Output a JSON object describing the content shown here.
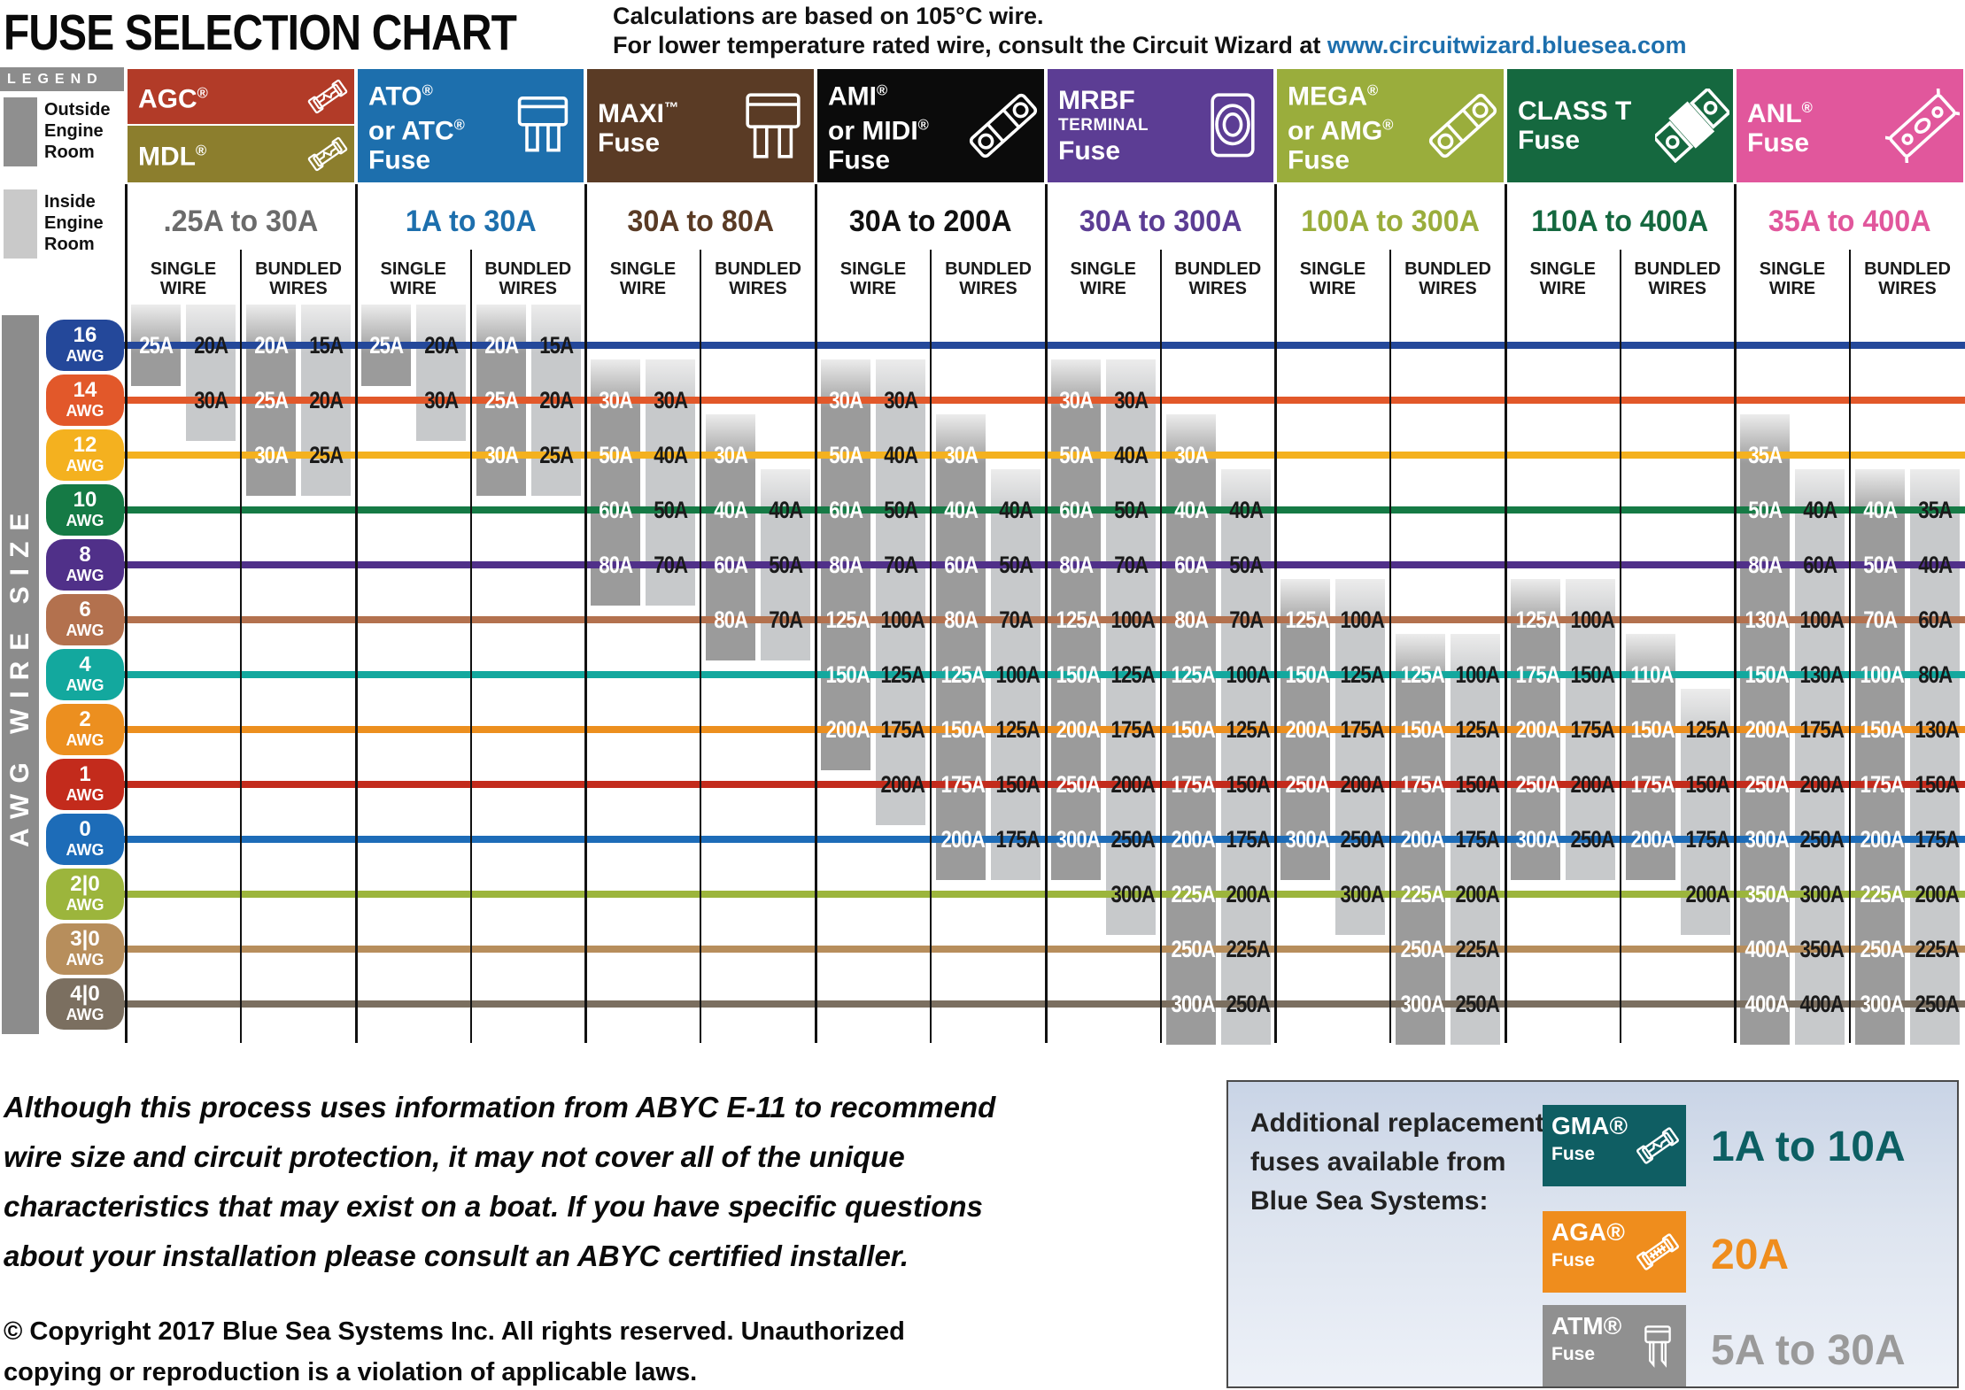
{
  "title": "FUSE SELECTION CHART",
  "note": {
    "line1": "Calculations are based on 105°C wire.",
    "line2_prefix": "For lower temperature rated wire, consult the Circuit Wizard at ",
    "link": "www.circuitwizard.bluesea.com"
  },
  "legend": {
    "title": "LEGEND",
    "outside_label": "Outside Engine Room",
    "inside_label": "Inside Engine Room",
    "outside_color": "#8f8f8f",
    "inside_color": "#c9c9c9"
  },
  "axis_label": "AWG WIRE SIZE",
  "disclaimer": [
    "Although this process uses information from ABYC E-11 to recommend",
    "wire size and circuit protection, it may not cover all of the unique",
    "characteristics that may exist on a boat. If you have specific questions",
    "about your installation please consult an ABYC certified installer."
  ],
  "copyright": [
    "© Copyright 2017 Blue Sea Systems Inc. All rights reserved. Unauthorized",
    "copying or reproduction is a violation of applicable laws."
  ],
  "replacement": {
    "intro_lines": [
      "Additional replacement",
      "fuses available from",
      "Blue Sea Systems:"
    ],
    "items": [
      {
        "id": "gma",
        "label": "GMA®",
        "sub": "Fuse",
        "range": "1A to 10A",
        "bg": "#0f5e63",
        "range_color": "#0d5f63"
      },
      {
        "id": "aga",
        "label": "AGA®",
        "sub": "Fuse",
        "range": "20A",
        "bg": "#ef8d1d",
        "range_color": "#ef8d1d"
      },
      {
        "id": "atm",
        "label": "ATM®",
        "sub": "Fuse",
        "range": "5A to 30A",
        "bg": "#909090",
        "range_color": "#9a9a9a"
      }
    ]
  },
  "chart_data": {
    "type": "table",
    "title": "FUSE SELECTION CHART",
    "row_axis_label": "AWG WIRE SIZE",
    "value_unit": "A",
    "value_slots": [
      "outside_engine_room",
      "inside_engine_room"
    ],
    "subcolumns": [
      "SINGLE WIRE",
      "BUNDLED WIRES"
    ],
    "bar_colors": {
      "outside": "#9b9b9b",
      "inside": "#c7c9cb"
    },
    "rows": [
      {
        "awg": "16",
        "color": "#24489a"
      },
      {
        "awg": "14",
        "color": "#e2582a"
      },
      {
        "awg": "12",
        "color": "#f4b11f"
      },
      {
        "awg": "10",
        "color": "#157a45"
      },
      {
        "awg": "8",
        "color": "#503089"
      },
      {
        "awg": "6",
        "color": "#b3714e"
      },
      {
        "awg": "4",
        "color": "#13a89e"
      },
      {
        "awg": "2",
        "color": "#ec8f1f"
      },
      {
        "awg": "1",
        "color": "#c32b1c"
      },
      {
        "awg": "0",
        "color": "#1d6cb8"
      },
      {
        "awg": "2|0",
        "color": "#9cb53c"
      },
      {
        "awg": "3|0",
        "color": "#b78e5c"
      },
      {
        "awg": "4|0",
        "color": "#7b6f60"
      }
    ],
    "columns": [
      {
        "id": "agc-mdl",
        "range": ".25A to 30A",
        "range_color": "#6b6b6b",
        "header": [
          {
            "lines": [
              "AGC®"
            ],
            "bg": "#b23b28",
            "icon": "glass-fuse"
          },
          {
            "lines": [
              "MDL®"
            ],
            "bg": "#8c7e2d",
            "icon": "glass-fuse"
          }
        ],
        "cells": [
          {
            "awg": "16",
            "single": [
              25,
              20
            ],
            "bundled": [
              20,
              15
            ]
          },
          {
            "awg": "14",
            "single": [
              null,
              30
            ],
            "bundled": [
              25,
              20
            ]
          },
          {
            "awg": "12",
            "bundled": [
              30,
              25
            ]
          }
        ]
      },
      {
        "id": "ato-atc",
        "range": "1A to 30A",
        "range_color": "#1d6fad",
        "header": [
          {
            "lines": [
              "ATO®",
              "or ATC®",
              "Fuse"
            ],
            "bg": "#1d6fad",
            "icon": "blade-fuse"
          }
        ],
        "cells": [
          {
            "awg": "16",
            "single": [
              25,
              20
            ],
            "bundled": [
              20,
              15
            ]
          },
          {
            "awg": "14",
            "single": [
              null,
              30
            ],
            "bundled": [
              25,
              20
            ]
          },
          {
            "awg": "12",
            "bundled": [
              30,
              25
            ]
          }
        ]
      },
      {
        "id": "maxi",
        "range": "30A to 80A",
        "range_color": "#5a3b25",
        "header": [
          {
            "lines": [
              "MAXI™",
              "Fuse"
            ],
            "bg": "#5a3b25",
            "icon": "maxi-fuse"
          }
        ],
        "cells": [
          {
            "awg": "14",
            "single": [
              30,
              30
            ]
          },
          {
            "awg": "12",
            "single": [
              50,
              40
            ],
            "bundled": [
              30,
              null
            ]
          },
          {
            "awg": "10",
            "single": [
              60,
              50
            ],
            "bundled": [
              40,
              40
            ]
          },
          {
            "awg": "8",
            "single": [
              80,
              70
            ],
            "bundled": [
              60,
              50
            ]
          },
          {
            "awg": "6",
            "bundled": [
              80,
              70
            ]
          }
        ]
      },
      {
        "id": "ami-midi",
        "range": "30A to 200A",
        "range_color": "#111111",
        "header": [
          {
            "lines": [
              "AMI®",
              "or MIDI®",
              "Fuse"
            ],
            "bg": "#0b0b0b",
            "icon": "bolt-fuse"
          }
        ],
        "cells": [
          {
            "awg": "14",
            "single": [
              30,
              30
            ]
          },
          {
            "awg": "12",
            "single": [
              50,
              40
            ],
            "bundled": [
              30,
              null
            ]
          },
          {
            "awg": "10",
            "single": [
              60,
              50
            ],
            "bundled": [
              40,
              40
            ]
          },
          {
            "awg": "8",
            "single": [
              80,
              70
            ],
            "bundled": [
              60,
              50
            ]
          },
          {
            "awg": "6",
            "single": [
              125,
              100
            ],
            "bundled": [
              80,
              70
            ]
          },
          {
            "awg": "4",
            "single": [
              150,
              125
            ],
            "bundled": [
              125,
              100
            ]
          },
          {
            "awg": "2",
            "single": [
              200,
              175
            ],
            "bundled": [
              150,
              125
            ]
          },
          {
            "awg": "1",
            "single": [
              null,
              200
            ],
            "bundled": [
              175,
              150
            ]
          },
          {
            "awg": "0",
            "bundled": [
              200,
              175
            ]
          }
        ]
      },
      {
        "id": "mrbf",
        "range": "30A to 300A",
        "range_color": "#5c3d94",
        "header": [
          {
            "lines": [
              "MRBF",
              "TERMINAL",
              "Fuse"
            ],
            "bg": "#5c3d94",
            "icon": "terminal-fuse"
          }
        ],
        "cells": [
          {
            "awg": "14",
            "single": [
              30,
              30
            ]
          },
          {
            "awg": "12",
            "single": [
              50,
              40
            ],
            "bundled": [
              30,
              null
            ]
          },
          {
            "awg": "10",
            "single": [
              60,
              50
            ],
            "bundled": [
              40,
              40
            ]
          },
          {
            "awg": "8",
            "single": [
              80,
              70
            ],
            "bundled": [
              60,
              50
            ]
          },
          {
            "awg": "6",
            "single": [
              125,
              100
            ],
            "bundled": [
              80,
              70
            ]
          },
          {
            "awg": "4",
            "single": [
              150,
              125
            ],
            "bundled": [
              125,
              100
            ]
          },
          {
            "awg": "2",
            "single": [
              200,
              175
            ],
            "bundled": [
              150,
              125
            ]
          },
          {
            "awg": "1",
            "single": [
              250,
              200
            ],
            "bundled": [
              175,
              150
            ]
          },
          {
            "awg": "0",
            "single": [
              300,
              250
            ],
            "bundled": [
              200,
              175
            ]
          },
          {
            "awg": "2|0",
            "single": [
              null,
              300
            ],
            "bundled": [
              225,
              200
            ]
          },
          {
            "awg": "3|0",
            "bundled": [
              250,
              225
            ]
          },
          {
            "awg": "4|0",
            "bundled": [
              300,
              250
            ]
          }
        ]
      },
      {
        "id": "mega-amg",
        "range": "100A to 300A",
        "range_color": "#9aad3c",
        "header": [
          {
            "lines": [
              "MEGA®",
              "or AMG®",
              "Fuse"
            ],
            "bg": "#9aad3c",
            "icon": "bolt-fuse"
          }
        ],
        "cells": [
          {
            "awg": "6",
            "single": [
              125,
              100
            ]
          },
          {
            "awg": "4",
            "single": [
              150,
              125
            ],
            "bundled": [
              125,
              100
            ]
          },
          {
            "awg": "2",
            "single": [
              200,
              175
            ],
            "bundled": [
              150,
              125
            ]
          },
          {
            "awg": "1",
            "single": [
              250,
              200
            ],
            "bundled": [
              175,
              150
            ]
          },
          {
            "awg": "0",
            "single": [
              300,
              250
            ],
            "bundled": [
              200,
              175
            ]
          },
          {
            "awg": "2|0",
            "single": [
              null,
              300
            ],
            "bundled": [
              225,
              200
            ]
          },
          {
            "awg": "3|0",
            "bundled": [
              250,
              225
            ]
          },
          {
            "awg": "4|0",
            "bundled": [
              300,
              250
            ]
          }
        ]
      },
      {
        "id": "class-t",
        "range": "110A to 400A",
        "range_color": "#15683f",
        "header": [
          {
            "lines": [
              "CLASS T",
              "Fuse"
            ],
            "bg": "#15683f",
            "icon": "class-t-fuse"
          }
        ],
        "cells": [
          {
            "awg": "6",
            "single": [
              125,
              100
            ]
          },
          {
            "awg": "4",
            "single": [
              175,
              150
            ],
            "bundled": [
              110,
              null
            ]
          },
          {
            "awg": "2",
            "single": [
              200,
              175
            ],
            "bundled": [
              150,
              125
            ]
          },
          {
            "awg": "1",
            "single": [
              250,
              200
            ],
            "bundled": [
              175,
              150
            ]
          },
          {
            "awg": "0",
            "single": [
              300,
              250
            ],
            "bundled": [
              200,
              175
            ]
          },
          {
            "awg": "2|0",
            "bundled": [
              null,
              200
            ]
          }
        ]
      },
      {
        "id": "anl",
        "range": "35A to 400A",
        "range_color": "#e1579c",
        "header": [
          {
            "lines": [
              "ANL®",
              "Fuse"
            ],
            "bg": "#e1579c",
            "icon": "anl-fuse"
          }
        ],
        "cells": [
          {
            "awg": "12",
            "single": [
              35,
              null
            ]
          },
          {
            "awg": "10",
            "single": [
              50,
              40
            ],
            "bundled": [
              40,
              35
            ]
          },
          {
            "awg": "8",
            "single": [
              80,
              60
            ],
            "bundled": [
              50,
              40
            ]
          },
          {
            "awg": "6",
            "single": [
              130,
              100
            ],
            "bundled": [
              70,
              60
            ]
          },
          {
            "awg": "4",
            "single": [
              150,
              130
            ],
            "bundled": [
              100,
              80
            ]
          },
          {
            "awg": "2",
            "single": [
              200,
              175
            ],
            "bundled": [
              150,
              130
            ]
          },
          {
            "awg": "1",
            "single": [
              250,
              200
            ],
            "bundled": [
              175,
              150
            ]
          },
          {
            "awg": "0",
            "single": [
              300,
              250
            ],
            "bundled": [
              200,
              175
            ]
          },
          {
            "awg": "2|0",
            "single": [
              350,
              300
            ],
            "bundled": [
              225,
              200
            ]
          },
          {
            "awg": "3|0",
            "single": [
              400,
              350
            ],
            "bundled": [
              250,
              225
            ]
          },
          {
            "awg": "4|0",
            "single": [
              400,
              400
            ],
            "bundled": [
              300,
              250
            ]
          }
        ]
      }
    ]
  }
}
